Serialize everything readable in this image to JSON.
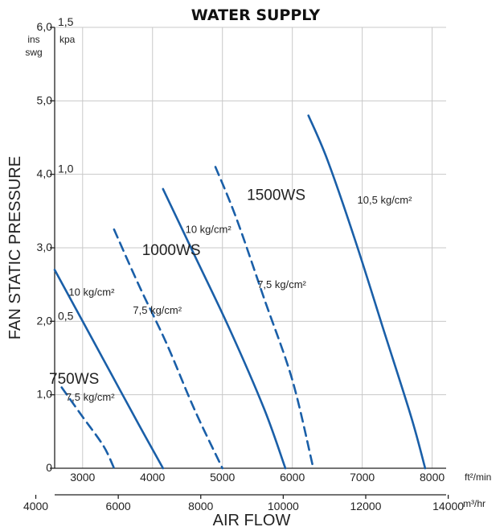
{
  "chart_data": {
    "type": "line",
    "title": "WATER SUPPLY",
    "xlabel": "AIR FLOW",
    "ylabel": "FAN STATIC PRESSURE",
    "ins_unit_top": "ins",
    "ins_unit_bottom": "swg",
    "kpa_unit": "kpa",
    "x_top_unit": "ft²/min",
    "x_bottom_unit": "m³/hr",
    "ylim": [
      0,
      6.0
    ],
    "xlim_ft": [
      2600,
      8200
    ],
    "y_ticks": [
      "0",
      "1,0",
      "2,0",
      "3,0",
      "4,0",
      "5,0",
      "6,0"
    ],
    "y_tick_values": [
      0,
      1,
      2,
      3,
      4,
      5,
      6
    ],
    "kpa_ticks": [
      "0,5",
      "1,0",
      "1,5"
    ],
    "kpa_tick_values_ins": [
      2.0,
      4.0,
      6.0
    ],
    "x_top_ticks": [
      "3000",
      "4000",
      "5000",
      "6000",
      "7000",
      "8000"
    ],
    "x_top_tick_values": [
      3000,
      4000,
      5000,
      6000,
      7000,
      8000
    ],
    "x_bottom_ticks": [
      "4000",
      "6000",
      "8000",
      "10000",
      "12000",
      "14000"
    ],
    "x_bottom_tick_positions_ft": [
      2330,
      3510,
      4690,
      5870,
      7050,
      8230
    ],
    "grid": true,
    "series": [
      {
        "style": "dashed",
        "points": [
          [
            2700,
            1.1
          ],
          [
            3000,
            0.7
          ],
          [
            3300,
            0.3
          ],
          [
            3450,
            0
          ]
        ]
      },
      {
        "style": "solid",
        "points": [
          [
            2600,
            2.7
          ],
          [
            3000,
            2.0
          ],
          [
            3400,
            1.3
          ],
          [
            3800,
            0.6
          ],
          [
            4150,
            0
          ]
        ]
      },
      {
        "style": "dashed",
        "points": [
          [
            3450,
            3.25
          ],
          [
            3800,
            2.5
          ],
          [
            4200,
            1.7
          ],
          [
            4600,
            0.8
          ],
          [
            5000,
            0
          ]
        ]
      },
      {
        "style": "solid",
        "points": [
          [
            4150,
            3.8
          ],
          [
            4600,
            2.9
          ],
          [
            5100,
            1.9
          ],
          [
            5600,
            0.8
          ],
          [
            5900,
            0
          ]
        ]
      },
      {
        "style": "dashed",
        "points": [
          [
            4900,
            4.1
          ],
          [
            5200,
            3.4
          ],
          [
            5600,
            2.3
          ],
          [
            6000,
            1.2
          ],
          [
            6300,
            0
          ]
        ]
      },
      {
        "style": "solid",
        "points": [
          [
            6230,
            4.8
          ],
          [
            6500,
            4.2
          ],
          [
            6900,
            3.1
          ],
          [
            7300,
            1.9
          ],
          [
            7700,
            0.7
          ],
          [
            7900,
            0
          ]
        ]
      }
    ],
    "series_labels": [
      {
        "text": "750WS",
        "x": 2520,
        "y": 1.15
      },
      {
        "text": "1000WS",
        "x": 3850,
        "y": 2.9
      },
      {
        "text": "1500WS",
        "x": 5350,
        "y": 3.65
      }
    ],
    "curve_labels": [
      {
        "text": "7,5 kg/cm²",
        "x": 2760,
        "y": 0.92
      },
      {
        "text": "10 kg/cm²",
        "x": 2800,
        "y": 2.35
      },
      {
        "text": "7,5 kg/cm²",
        "x": 3720,
        "y": 2.1
      },
      {
        "text": "10 kg/cm²",
        "x": 4470,
        "y": 3.2
      },
      {
        "text": "7,5 kg/cm²",
        "x": 5500,
        "y": 2.45
      },
      {
        "text": "10,5 kg/cm²",
        "x": 6930,
        "y": 3.6
      }
    ]
  }
}
